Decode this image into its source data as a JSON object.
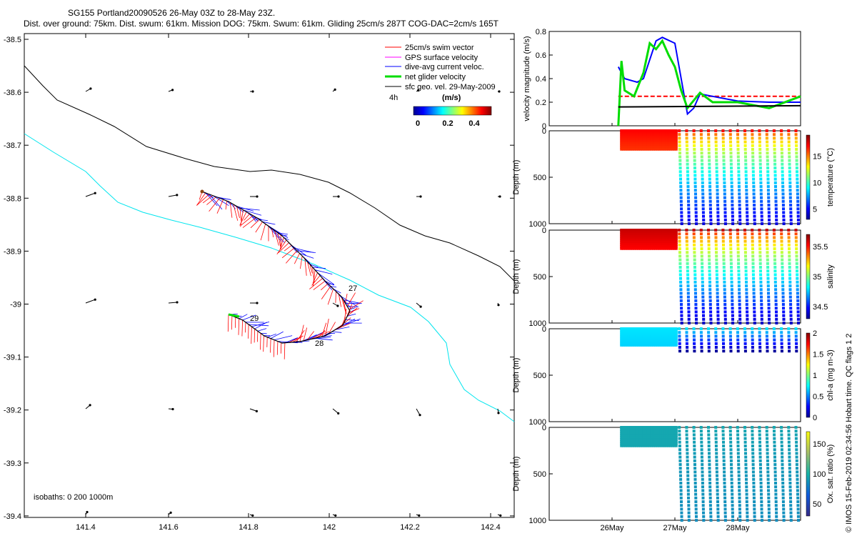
{
  "header": {
    "line1": "SG155 Portland20090526 26-May 03Z to 28-May 23Z.",
    "line2": "Dist. over ground: 75km. Dist. swum: 61km. Mission DOG: 75km. Swum: 61km. Gliding 25cm/s 287T COG-DAC=2cm/s 165T"
  },
  "credit": "© IMOS 15-Feb-2019 02:34:56 Hobart time. QC flags 1  2",
  "map": {
    "x_ticks": [
      "141.4",
      "141.6",
      "141.8",
      "142",
      "142.2",
      "142.4"
    ],
    "y_ticks": [
      "-38.5",
      "-38.6",
      "-38.7",
      "-38.8",
      "-38.9",
      "-39",
      "-39.1",
      "-39.2",
      "-39.3",
      "-39.4"
    ],
    "isobaths_label": "isobaths: 0   200  1000m",
    "legend": [
      {
        "label": "25cm/s swim vector",
        "color": "#ff0000"
      },
      {
        "label": "GPS surface velocity",
        "color": "#ff00ff"
      },
      {
        "label": "dive-avg current veloc.",
        "color": "#0000ff"
      },
      {
        "label": "net glider velocity",
        "color": "#00dd00"
      },
      {
        "label": "sfc geo. vel. 29-May-2009",
        "color": "#000000"
      }
    ],
    "hours_label": "4h",
    "colorbar_unit": "(m/s)",
    "colorbar_ticks": [
      "0",
      "0.2",
      "0.4"
    ],
    "track_labels": [
      "27",
      "28",
      "29"
    ]
  },
  "chart_data": [
    {
      "type": "line",
      "title": "velocity magnitude",
      "ylabel": "velocity magnitude (m/s)",
      "ylim": [
        0,
        0.8
      ],
      "yticks": [
        "0",
        "0.2",
        "0.4",
        "0.6",
        "0.8"
      ],
      "series": [
        {
          "name": "swim 25cm/s",
          "color": "#ff0000",
          "x": [
            26.1,
            29.0
          ],
          "y": [
            0.25,
            0.25
          ]
        },
        {
          "name": "dive-avg current",
          "color": "#0000ff",
          "x": [
            26.1,
            26.2,
            26.4,
            26.5,
            26.7,
            26.8,
            27.0,
            27.1,
            27.2,
            27.3,
            27.4,
            27.6,
            27.8,
            28.0,
            28.5,
            29.0
          ],
          "y": [
            0.5,
            0.4,
            0.37,
            0.4,
            0.72,
            0.75,
            0.7,
            0.4,
            0.1,
            0.15,
            0.27,
            0.25,
            0.23,
            0.21,
            0.2,
            0.2
          ]
        },
        {
          "name": "net glider",
          "color": "#00dd00",
          "x": [
            26.1,
            26.15,
            26.2,
            26.35,
            26.5,
            26.6,
            26.7,
            26.8,
            26.9,
            27.0,
            27.1,
            27.2,
            27.4,
            27.6,
            28.0,
            28.5,
            29.0
          ],
          "y": [
            0.0,
            0.55,
            0.3,
            0.25,
            0.45,
            0.7,
            0.65,
            0.72,
            0.6,
            0.5,
            0.3,
            0.15,
            0.28,
            0.2,
            0.2,
            0.15,
            0.25
          ]
        },
        {
          "name": "sfc geo",
          "color": "#000000",
          "x": [
            26.1,
            29.0
          ],
          "y": [
            0.16,
            0.17
          ]
        }
      ]
    },
    {
      "type": "scatter",
      "title": "temperature",
      "ylabel": "Depth (m)",
      "ylim": [
        1000,
        0
      ],
      "yticks": [
        "0",
        "500",
        "1000"
      ],
      "cbar_label": "temperature (°C)",
      "cbar_ticks": [
        "5",
        "10",
        "15"
      ],
      "cbar_range": [
        3,
        19
      ],
      "surface_value": 17,
      "deep_value": 4.5,
      "shallow_phase_end": 27.05
    },
    {
      "type": "scatter",
      "title": "salinity",
      "ylabel": "Depth (m)",
      "ylim": [
        1000,
        0
      ],
      "yticks": [
        "0",
        "500",
        "1000"
      ],
      "cbar_label": "salinity",
      "cbar_ticks": [
        "34.5",
        "35",
        "35.5"
      ],
      "cbar_range": [
        34.3,
        35.7
      ],
      "surface_value": 35.6,
      "deep_value": 34.4,
      "shallow_phase_end": 27.05
    },
    {
      "type": "scatter",
      "title": "chl-a",
      "ylabel": "Depth (m)",
      "ylim": [
        1000,
        0
      ],
      "yticks": [
        "0",
        "500",
        "1000"
      ],
      "cbar_label": "chl-a (mg m-3)",
      "cbar_ticks": [
        "0",
        "0.5",
        "1",
        "1.5",
        "2"
      ],
      "cbar_range": [
        0,
        2
      ],
      "surface_value": 0.7,
      "deep_value": 0.1,
      "shallow_phase_end": 27.05
    },
    {
      "type": "scatter",
      "title": "oxygen saturation",
      "ylabel": "Depth (m)",
      "ylim": [
        1000,
        0
      ],
      "yticks": [
        "0",
        "500",
        "1000"
      ],
      "cbar_label": "Ox. sat. ratio (%)",
      "cbar_ticks": [
        "50",
        "100",
        "150"
      ],
      "cbar_range": [
        30,
        170
      ],
      "surface_value": 95,
      "deep_value": 85,
      "shallow_phase_end": 27.05
    }
  ],
  "time_axis": {
    "ticks": [
      "26May",
      "27May",
      "28May"
    ],
    "range": [
      25.0,
      29.0
    ]
  }
}
